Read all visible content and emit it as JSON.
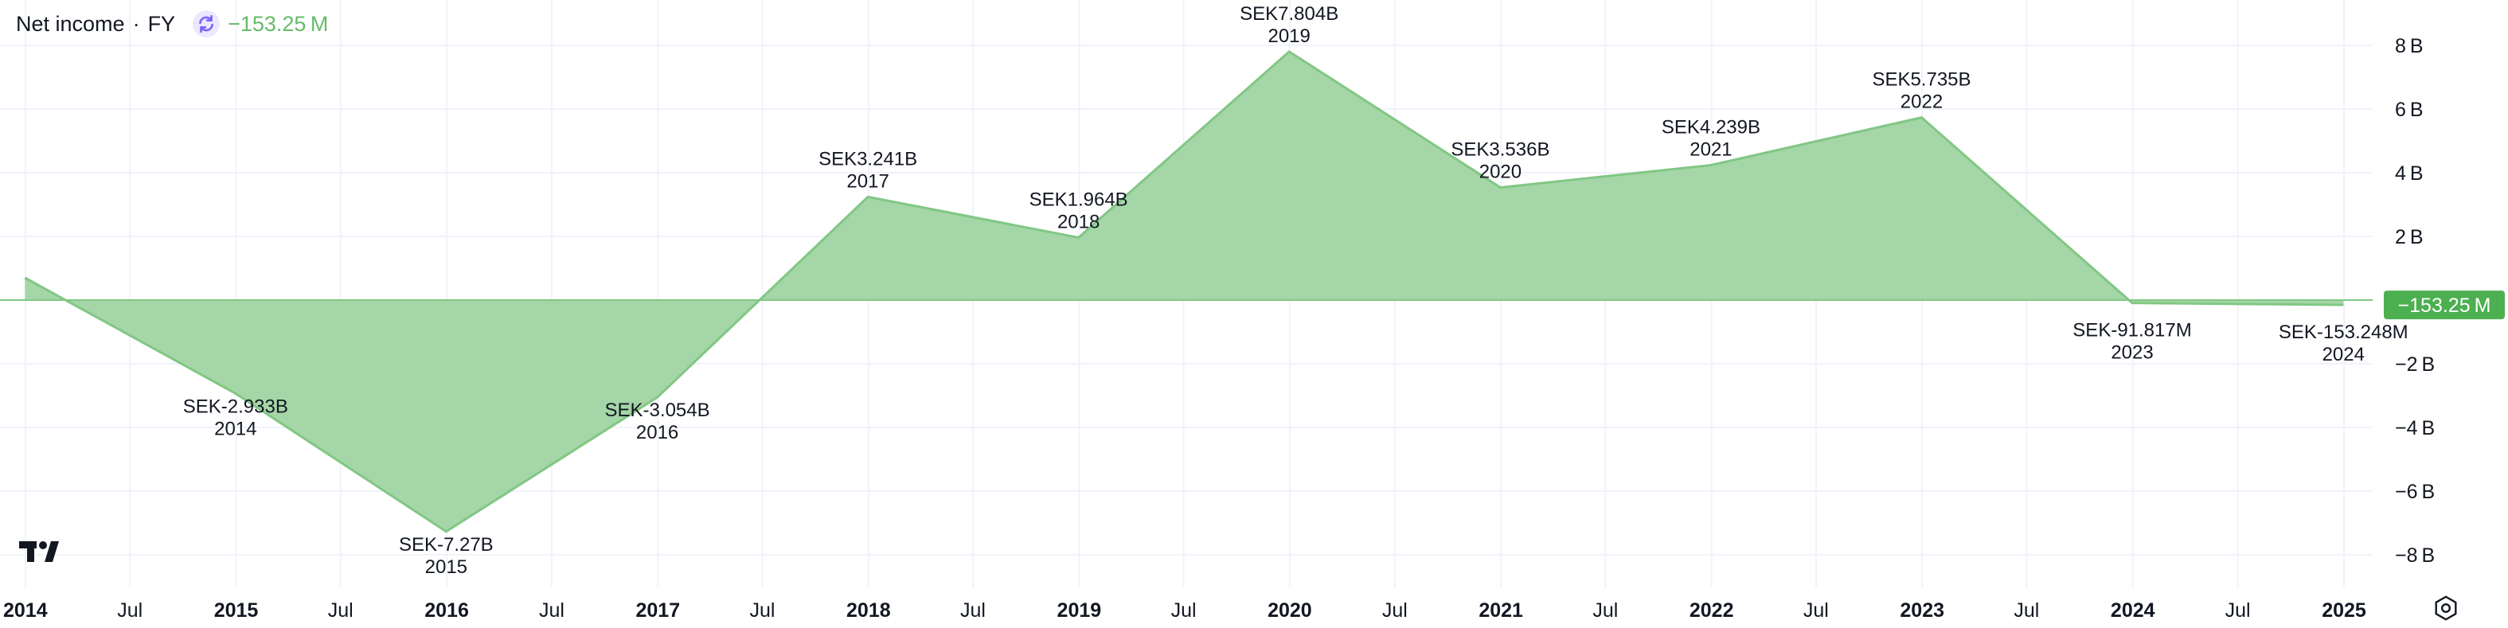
{
  "legend": {
    "title": "Net income",
    "separator": "·",
    "period": "FY",
    "value": "−153.25 M"
  },
  "colors": {
    "area_fill": "#a5d6a7",
    "area_line": "#81c784",
    "price_tag": "#4caf50",
    "legend_value": "#66bb6a",
    "grid": "#f0f3fa",
    "text": "#131722"
  },
  "icons": {
    "refresh": "refresh-icon",
    "logo": "tradingview-logo-icon",
    "settings": "settings-icon"
  },
  "chart_data": {
    "type": "area",
    "title": "Net income · FY",
    "ylabel": "",
    "xlabel": "",
    "ylim": [
      -9,
      9
    ],
    "grid": true,
    "y_ticks": [
      {
        "value": 8,
        "label": "8 B"
      },
      {
        "value": 6,
        "label": "6 B"
      },
      {
        "value": 4,
        "label": "4 B"
      },
      {
        "value": 2,
        "label": "2 B"
      },
      {
        "value": -2,
        "label": "−2 B"
      },
      {
        "value": -4,
        "label": "−4 B"
      },
      {
        "value": -6,
        "label": "−6 B"
      },
      {
        "value": -8,
        "label": "−8 B"
      }
    ],
    "x_ticks": [
      {
        "date": "2014-01-01",
        "label": "2014",
        "major": true
      },
      {
        "date": "2014-07-01",
        "label": "Jul",
        "major": false
      },
      {
        "date": "2015-01-01",
        "label": "2015",
        "major": true
      },
      {
        "date": "2015-07-01",
        "label": "Jul",
        "major": false
      },
      {
        "date": "2016-01-01",
        "label": "2016",
        "major": true
      },
      {
        "date": "2016-07-01",
        "label": "Jul",
        "major": false
      },
      {
        "date": "2017-01-01",
        "label": "2017",
        "major": true
      },
      {
        "date": "2017-07-01",
        "label": "Jul",
        "major": false
      },
      {
        "date": "2018-01-01",
        "label": "2018",
        "major": true
      },
      {
        "date": "2018-07-01",
        "label": "Jul",
        "major": false
      },
      {
        "date": "2019-01-01",
        "label": "2019",
        "major": true
      },
      {
        "date": "2019-07-01",
        "label": "Jul",
        "major": false
      },
      {
        "date": "2020-01-01",
        "label": "2020",
        "major": true
      },
      {
        "date": "2020-07-01",
        "label": "Jul",
        "major": false
      },
      {
        "date": "2021-01-01",
        "label": "2021",
        "major": true
      },
      {
        "date": "2021-07-01",
        "label": "Jul",
        "major": false
      },
      {
        "date": "2022-01-01",
        "label": "2022",
        "major": true
      },
      {
        "date": "2022-07-01",
        "label": "Jul",
        "major": false
      },
      {
        "date": "2023-01-01",
        "label": "2023",
        "major": true
      },
      {
        "date": "2023-07-01",
        "label": "Jul",
        "major": false
      },
      {
        "date": "2024-01-01",
        "label": "2024",
        "major": true
      },
      {
        "date": "2024-07-01",
        "label": "Jul",
        "major": false
      },
      {
        "date": "2025-01-01",
        "label": "2025",
        "major": true
      }
    ],
    "series": [
      {
        "points": [
          {
            "date": "2013-12-31",
            "value": 0.7,
            "label": "",
            "year_label": ""
          },
          {
            "date": "2014-12-31",
            "value": -2.933,
            "label": "SEK-2.933B",
            "year_label": "2014"
          },
          {
            "date": "2015-12-31",
            "value": -7.27,
            "label": "SEK-7.27B",
            "year_label": "2015"
          },
          {
            "date": "2016-12-31",
            "value": -3.054,
            "label": "SEK-3.054B",
            "year_label": "2016"
          },
          {
            "date": "2017-12-31",
            "value": 3.241,
            "label": "SEK3.241B",
            "year_label": "2017"
          },
          {
            "date": "2018-12-31",
            "value": 1.964,
            "label": "SEK1.964B",
            "year_label": "2018"
          },
          {
            "date": "2019-12-31",
            "value": 7.804,
            "label": "SEK7.804B",
            "year_label": "2019"
          },
          {
            "date": "2020-12-31",
            "value": 3.536,
            "label": "SEK3.536B",
            "year_label": "2020"
          },
          {
            "date": "2021-12-31",
            "value": 4.239,
            "label": "SEK4.239B",
            "year_label": "2021"
          },
          {
            "date": "2022-12-31",
            "value": 5.735,
            "label": "SEK5.735B",
            "year_label": "2022"
          },
          {
            "date": "2023-12-31",
            "value": -0.091817,
            "label": "SEK-91.817M",
            "year_label": "2023"
          },
          {
            "date": "2024-12-31",
            "value": -0.153248,
            "label": "SEK-153.248M",
            "year_label": "2024"
          }
        ]
      }
    ],
    "last_value_tag": "−153.25 M"
  }
}
